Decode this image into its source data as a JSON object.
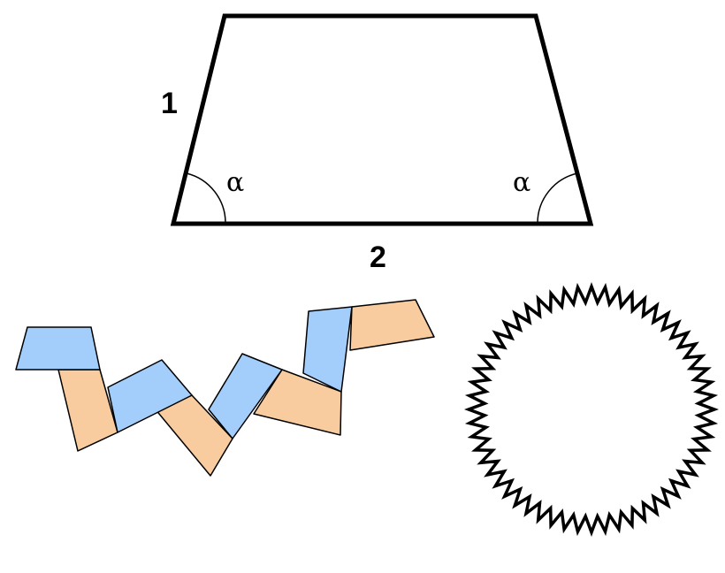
{
  "trapezoid": {
    "side_label": "1",
    "base_label": "2",
    "angle_left_label": "α",
    "angle_right_label": "α"
  },
  "colors": {
    "blue_piece": "#a3cdfa",
    "orange_piece": "#f8cc9f",
    "stroke": "#000000",
    "background": "#ffffff"
  },
  "ring": {
    "shape": "zigzag-circle"
  }
}
